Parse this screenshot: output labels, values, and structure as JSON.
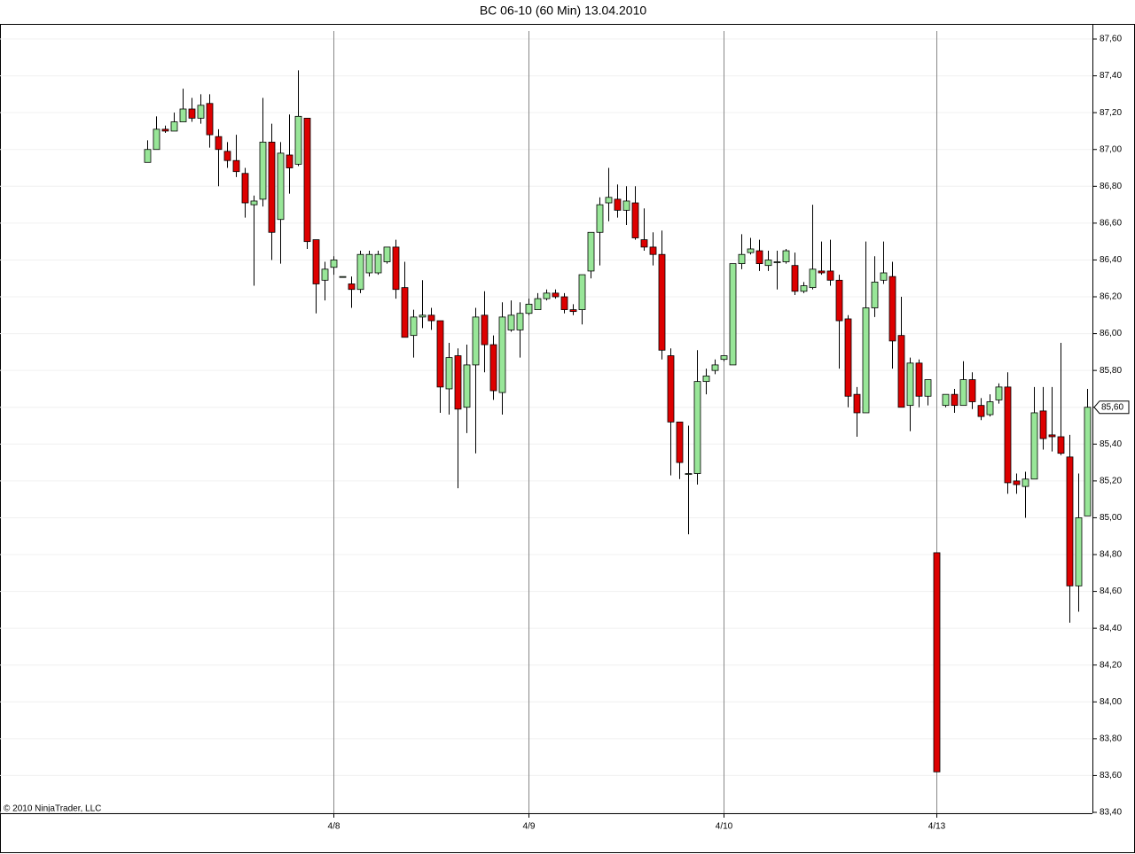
{
  "chart_data": {
    "type": "candlestick",
    "title": "BC 06-10 (60 Min)  13.04.2010",
    "copyright": "© 2010 NinjaTrader, LLC",
    "categories": [
      null,
      null,
      null,
      null,
      null,
      null,
      null,
      null,
      null,
      null,
      null,
      null,
      null,
      null,
      null,
      null,
      null,
      null,
      null,
      null,
      null,
      "4/8",
      null,
      null,
      null,
      null,
      null,
      null,
      null,
      null,
      null,
      null,
      null,
      null,
      null,
      null,
      null,
      null,
      null,
      null,
      null,
      null,
      null,
      "4/9",
      null,
      null,
      null,
      null,
      null,
      null,
      null,
      null,
      null,
      null,
      null,
      null,
      null,
      null,
      null,
      null,
      null,
      null,
      null,
      null,
      null,
      "4/10",
      null,
      null,
      null,
      null,
      null,
      null,
      null,
      null,
      null,
      null,
      null,
      null,
      null,
      null,
      null,
      null,
      null,
      null,
      null,
      null,
      null,
      null,
      null,
      "4/13",
      null,
      null,
      null,
      null,
      null,
      null,
      null,
      null,
      null,
      null,
      null,
      null,
      null,
      null,
      null,
      null,
      null
    ],
    "open": [
      86.93,
      87.0,
      87.11,
      87.1,
      87.15,
      87.22,
      87.17,
      87.25,
      87.07,
      86.99,
      86.94,
      86.87,
      86.7,
      86.73,
      87.04,
      86.62,
      86.97,
      86.92,
      87.17,
      86.51,
      86.29,
      86.36,
      86.31,
      86.27,
      86.24,
      86.33,
      86.33,
      86.39,
      86.47,
      86.25,
      85.99,
      86.09,
      86.1,
      86.07,
      85.7,
      85.88,
      85.6,
      85.83,
      86.1,
      85.94,
      85.68,
      86.02,
      86.02,
      86.11,
      86.13,
      86.19,
      86.22,
      86.2,
      86.13,
      86.13,
      86.34,
      86.55,
      86.71,
      86.73,
      86.67,
      86.71,
      86.51,
      86.47,
      86.43,
      85.88,
      85.52,
      85.24,
      85.24,
      85.74,
      85.8,
      85.86,
      85.83,
      86.38,
      86.44,
      86.45,
      86.37,
      86.39,
      86.39,
      86.37,
      86.23,
      86.25,
      86.34,
      86.34,
      86.29,
      86.08,
      85.67,
      85.57,
      86.14,
      86.29,
      86.31,
      85.99,
      85.61,
      85.84,
      85.66,
      84.81,
      85.61,
      85.67,
      85.61,
      85.75,
      85.61,
      85.56,
      85.64,
      85.71,
      85.2,
      85.17,
      85.21,
      85.58,
      85.45,
      85.44,
      85.33,
      84.63,
      85.01
    ],
    "high": [
      87.05,
      87.18,
      87.13,
      87.2,
      87.33,
      87.28,
      87.3,
      87.3,
      87.11,
      87.04,
      87.08,
      86.9,
      86.75,
      87.28,
      87.14,
      87.04,
      87.19,
      87.43,
      87.17,
      86.51,
      86.39,
      86.42,
      86.31,
      86.31,
      86.45,
      86.45,
      86.45,
      86.47,
      86.51,
      86.39,
      86.13,
      86.29,
      86.14,
      86.07,
      85.95,
      85.92,
      85.94,
      86.14,
      86.23,
      85.99,
      86.17,
      86.18,
      86.17,
      86.19,
      86.22,
      86.24,
      86.24,
      86.22,
      86.16,
      86.32,
      86.55,
      86.74,
      86.9,
      86.81,
      86.8,
      86.8,
      86.68,
      86.55,
      86.56,
      85.92,
      85.52,
      85.5,
      85.91,
      85.81,
      85.86,
      85.88,
      86.38,
      86.54,
      86.52,
      86.51,
      86.45,
      86.45,
      86.46,
      86.44,
      86.28,
      86.7,
      86.5,
      86.51,
      86.32,
      86.1,
      85.71,
      86.5,
      86.42,
      86.5,
      86.39,
      86.2,
      85.87,
      85.86,
      85.75,
      84.81,
      85.67,
      85.7,
      85.85,
      85.79,
      85.65,
      85.67,
      85.73,
      85.79,
      85.24,
      85.25,
      85.71,
      85.71,
      85.71,
      85.95,
      85.45,
      85.24,
      85.7
    ],
    "low": [
      86.93,
      87.0,
      87.09,
      87.1,
      87.15,
      87.15,
      87.14,
      87.01,
      86.8,
      86.9,
      86.85,
      86.63,
      86.26,
      86.69,
      86.4,
      86.38,
      86.76,
      86.91,
      86.46,
      86.11,
      86.18,
      86.32,
      86.31,
      86.14,
      86.22,
      86.31,
      86.32,
      86.38,
      86.19,
      85.98,
      85.87,
      86.03,
      86.02,
      85.57,
      85.56,
      85.16,
      85.46,
      85.35,
      85.79,
      85.64,
      85.56,
      86.01,
      85.87,
      86.1,
      86.13,
      86.18,
      86.19,
      86.11,
      86.1,
      86.05,
      86.3,
      86.37,
      86.61,
      86.63,
      86.59,
      86.51,
      86.45,
      86.37,
      85.86,
      85.23,
      85.21,
      84.91,
      85.18,
      85.67,
      85.78,
      85.85,
      85.83,
      86.35,
      86.43,
      86.34,
      86.34,
      86.24,
      86.38,
      86.21,
      86.22,
      86.24,
      86.32,
      86.26,
      85.81,
      85.6,
      85.44,
      85.57,
      86.09,
      86.27,
      85.81,
      85.6,
      85.47,
      85.6,
      85.61,
      83.62,
      85.6,
      85.57,
      85.61,
      85.59,
      85.53,
      85.55,
      85.62,
      85.13,
      85.13,
      85.0,
      85.21,
      85.37,
      85.36,
      85.34,
      84.43,
      84.49,
      85.01
    ],
    "close": [
      87.0,
      87.11,
      87.1,
      87.15,
      87.22,
      87.17,
      87.24,
      87.08,
      87.0,
      86.94,
      86.88,
      86.71,
      86.72,
      87.04,
      86.55,
      86.98,
      86.9,
      87.18,
      86.5,
      86.27,
      86.35,
      86.4,
      86.31,
      86.24,
      86.43,
      86.43,
      86.43,
      86.47,
      86.24,
      85.98,
      86.09,
      86.1,
      86.07,
      85.71,
      85.87,
      85.59,
      85.83,
      86.09,
      85.94,
      85.69,
      86.09,
      86.1,
      86.11,
      86.16,
      86.19,
      86.22,
      86.2,
      86.13,
      86.12,
      86.32,
      86.55,
      86.7,
      86.74,
      86.67,
      86.72,
      86.52,
      86.47,
      86.43,
      85.91,
      85.52,
      85.3,
      85.24,
      85.74,
      85.77,
      85.83,
      85.88,
      86.38,
      86.43,
      86.46,
      86.38,
      86.4,
      86.39,
      86.45,
      86.23,
      86.26,
      86.35,
      86.33,
      86.29,
      86.07,
      85.66,
      85.57,
      86.14,
      86.28,
      86.33,
      85.96,
      85.6,
      85.84,
      85.66,
      85.75,
      83.62,
      85.67,
      85.61,
      85.75,
      85.63,
      85.55,
      85.63,
      85.71,
      85.19,
      85.18,
      85.21,
      85.57,
      85.43,
      85.44,
      85.35,
      84.63,
      85.0,
      85.6
    ],
    "up_color": "#98e698",
    "down_color": "#dd0000",
    "last_price": {
      "value": 85.6,
      "label": "85,60"
    },
    "ylim": [
      83.4,
      87.68
    ],
    "yticks": [
      {
        "value": 83.4,
        "label": "83,40"
      },
      {
        "value": 83.6,
        "label": "83,60"
      },
      {
        "value": 83.8,
        "label": "83,80"
      },
      {
        "value": 84.0,
        "label": "84,00"
      },
      {
        "value": 84.2,
        "label": "84,20"
      },
      {
        "value": 84.4,
        "label": "84,40"
      },
      {
        "value": 84.6,
        "label": "84,60"
      },
      {
        "value": 84.8,
        "label": "84,80"
      },
      {
        "value": 85.0,
        "label": "85,00"
      },
      {
        "value": 85.2,
        "label": "85,20"
      },
      {
        "value": 85.4,
        "label": "85,40"
      },
      {
        "value": 85.6,
        "label": "85,60"
      },
      {
        "value": 85.8,
        "label": "85,80"
      },
      {
        "value": 86.0,
        "label": "86,00"
      },
      {
        "value": 86.2,
        "label": "86,20"
      },
      {
        "value": 86.4,
        "label": "86,40"
      },
      {
        "value": 86.6,
        "label": "86,60"
      },
      {
        "value": 86.8,
        "label": "86,80"
      },
      {
        "value": 87.0,
        "label": "87,00"
      },
      {
        "value": 87.2,
        "label": "87,20"
      },
      {
        "value": 87.4,
        "label": "87,40"
      },
      {
        "value": 87.6,
        "label": "87,60"
      }
    ],
    "grid": true
  }
}
